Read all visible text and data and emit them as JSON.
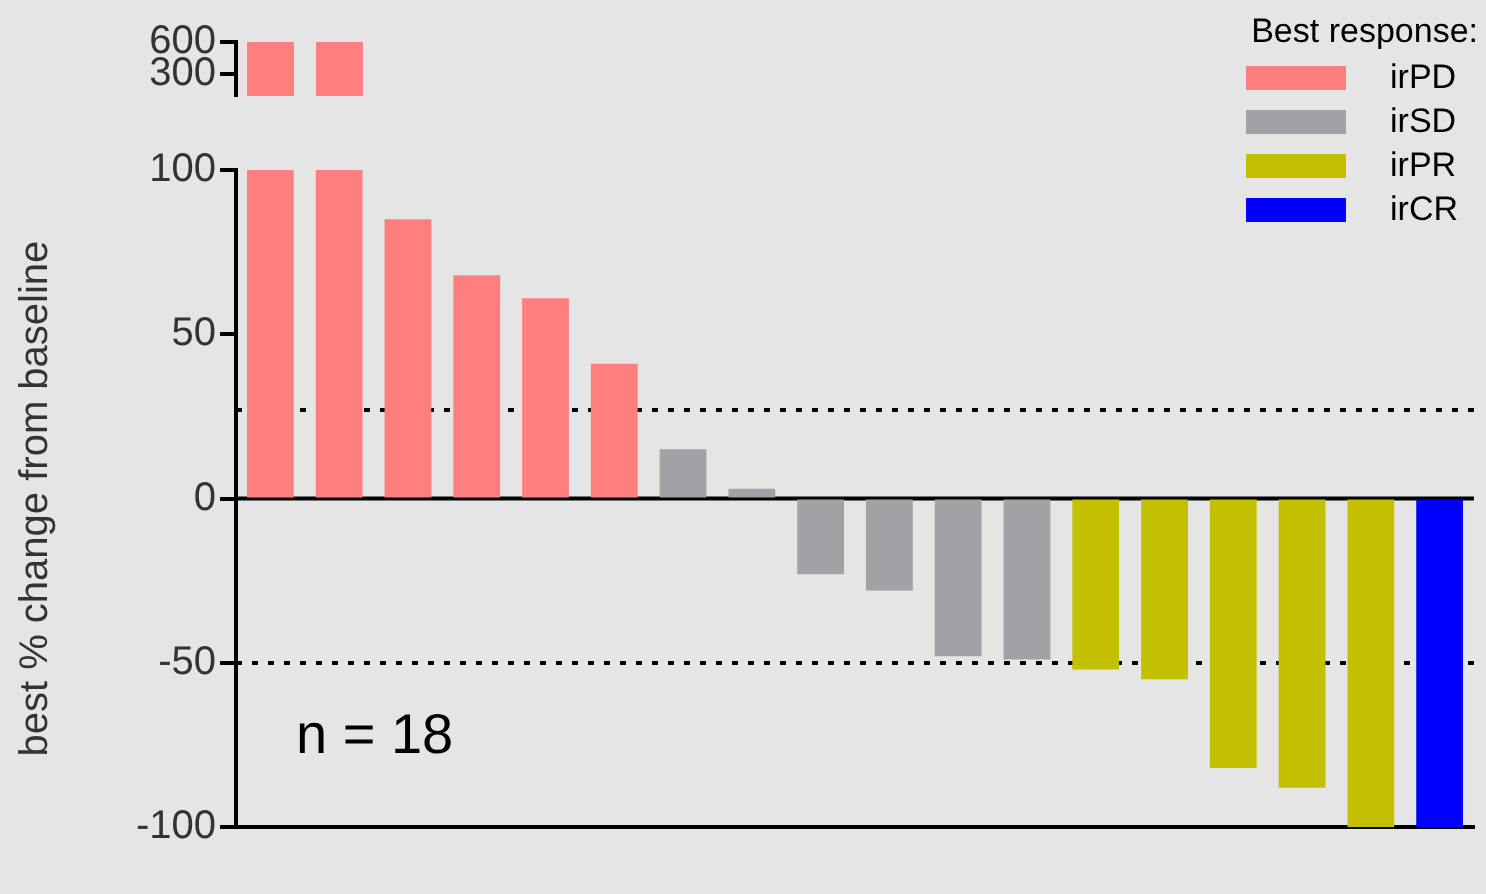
{
  "chart_data": [
    {
      "type": "bar",
      "tick_labels": "y",
      "grid": false,
      "categories": [
        null,
        null
      ],
      "series": [
        {
          "color": "#ff7f7f",
          "values": [
            600,
            600
          ]
        }
      ],
      "ylim": [
        100,
        600
      ],
      "yticks": [
        300,
        600
      ]
    },
    {
      "type": "bar",
      "ylabel": "best % change from baseline",
      "legend_title": "Best response:",
      "legend": "top right",
      "grid": false,
      "categories": [
        null,
        null,
        null,
        null,
        null,
        null,
        null,
        null,
        null,
        null,
        null,
        null,
        null,
        null,
        null,
        null,
        null,
        null
      ],
      "series": [
        {
          "name": "irPD",
          "color": "#ff7f7f",
          "values": [
            100,
            100,
            85,
            68,
            61,
            41,
            null,
            null,
            null,
            null,
            null,
            null,
            null,
            null,
            null,
            null,
            null,
            null
          ]
        },
        {
          "name": "irSD",
          "color": "#a2a1a6",
          "values": [
            null,
            null,
            null,
            null,
            null,
            null,
            15,
            3,
            -23,
            -28,
            -48,
            -49,
            null,
            null,
            null,
            null,
            null,
            null
          ]
        },
        {
          "name": "irPR",
          "color": "#c2c000",
          "values": [
            null,
            null,
            null,
            null,
            null,
            null,
            null,
            null,
            null,
            null,
            null,
            null,
            -52,
            -55,
            -82,
            -88,
            -100,
            null
          ]
        },
        {
          "name": "irCR",
          "color": "#0000ff",
          "values": [
            null,
            null,
            null,
            null,
            null,
            null,
            null,
            null,
            null,
            null,
            null,
            null,
            null,
            null,
            null,
            null,
            null,
            -100
          ]
        }
      ],
      "ylim": [
        -100,
        100
      ],
      "yticks": [
        -100,
        -50,
        0,
        50,
        100
      ],
      "ref_lines": [
        {
          "axis": "y",
          "value": 27,
          "line_style": "dotted",
          "color": "#000000"
        },
        {
          "axis": "y",
          "value": -50,
          "line_style": "dotted",
          "color": "#000000"
        },
        {
          "axis": "y",
          "value": 0,
          "line_style": "solid",
          "color": "#000000"
        }
      ],
      "annotations": [
        "n = 18"
      ]
    }
  ]
}
